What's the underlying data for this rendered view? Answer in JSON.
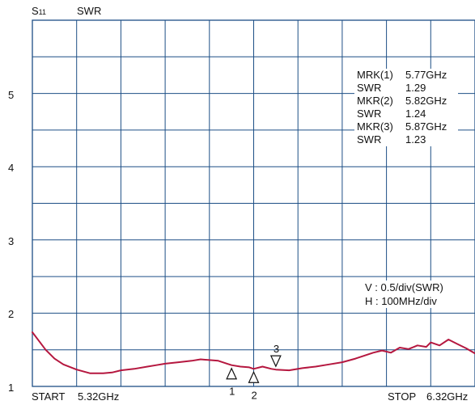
{
  "header": {
    "param_main": "S",
    "param_sub": "11",
    "format": "SWR"
  },
  "x_axis": {
    "start_label": "START",
    "start_value": "5.32GHz",
    "stop_label": "STOP",
    "stop_value": "6.32GHz"
  },
  "markers": [
    {
      "name": "MRK(1)",
      "freq": "5.77GHz",
      "swr_label": "SWR",
      "swr": "1.29",
      "number": "1"
    },
    {
      "name": "MKR(2)",
      "freq": "5.82GHz",
      "swr_label": "SWR",
      "swr": "1.24",
      "number": "2"
    },
    {
      "name": "MKR(3)",
      "freq": "5.87GHz",
      "swr_label": "SWR",
      "swr": "1.23",
      "number": "3"
    }
  ],
  "scale": {
    "vertical": "V : 0.5/div(SWR)",
    "horizontal": "H : 100MHz/div"
  },
  "chart_data": {
    "type": "line",
    "x_unit": "GHz",
    "xlim": [
      5.32,
      6.32
    ],
    "ylim": [
      1,
      6
    ],
    "y_ticks": [
      "1",
      "2",
      "3",
      "4",
      "5"
    ],
    "grid": true,
    "grid_divisions": {
      "x": 10,
      "y": 10
    },
    "trace_color": "#b5173f",
    "grid_color": "#1d4f86",
    "series": [
      {
        "x": [
          5.32,
          5.335,
          5.35,
          5.37,
          5.39,
          5.42,
          5.45,
          5.48,
          5.5,
          5.52,
          5.55,
          5.58,
          5.6,
          5.62,
          5.65,
          5.68,
          5.7,
          5.72,
          5.74,
          5.76,
          5.77,
          5.79,
          5.81,
          5.82,
          5.84,
          5.86,
          5.87,
          5.9,
          5.93,
          5.96,
          5.99,
          6.02,
          6.05,
          6.07,
          6.09,
          6.11,
          6.13,
          6.15,
          6.17,
          6.19,
          6.21,
          6.22,
          6.24,
          6.26,
          6.28,
          6.3,
          6.32
        ],
        "y": [
          1.74,
          1.62,
          1.5,
          1.38,
          1.3,
          1.23,
          1.18,
          1.18,
          1.19,
          1.22,
          1.24,
          1.27,
          1.29,
          1.31,
          1.33,
          1.35,
          1.37,
          1.36,
          1.35,
          1.31,
          1.29,
          1.27,
          1.26,
          1.24,
          1.27,
          1.24,
          1.23,
          1.22,
          1.25,
          1.27,
          1.3,
          1.33,
          1.38,
          1.42,
          1.46,
          1.49,
          1.46,
          1.53,
          1.51,
          1.56,
          1.54,
          1.6,
          1.56,
          1.64,
          1.58,
          1.52,
          1.45
        ]
      }
    ],
    "markers": [
      {
        "number": "1",
        "x": 5.77,
        "y": 1.29
      },
      {
        "number": "2",
        "x": 5.82,
        "y": 1.24
      },
      {
        "number": "3",
        "x": 5.87,
        "y": 1.23
      }
    ]
  }
}
